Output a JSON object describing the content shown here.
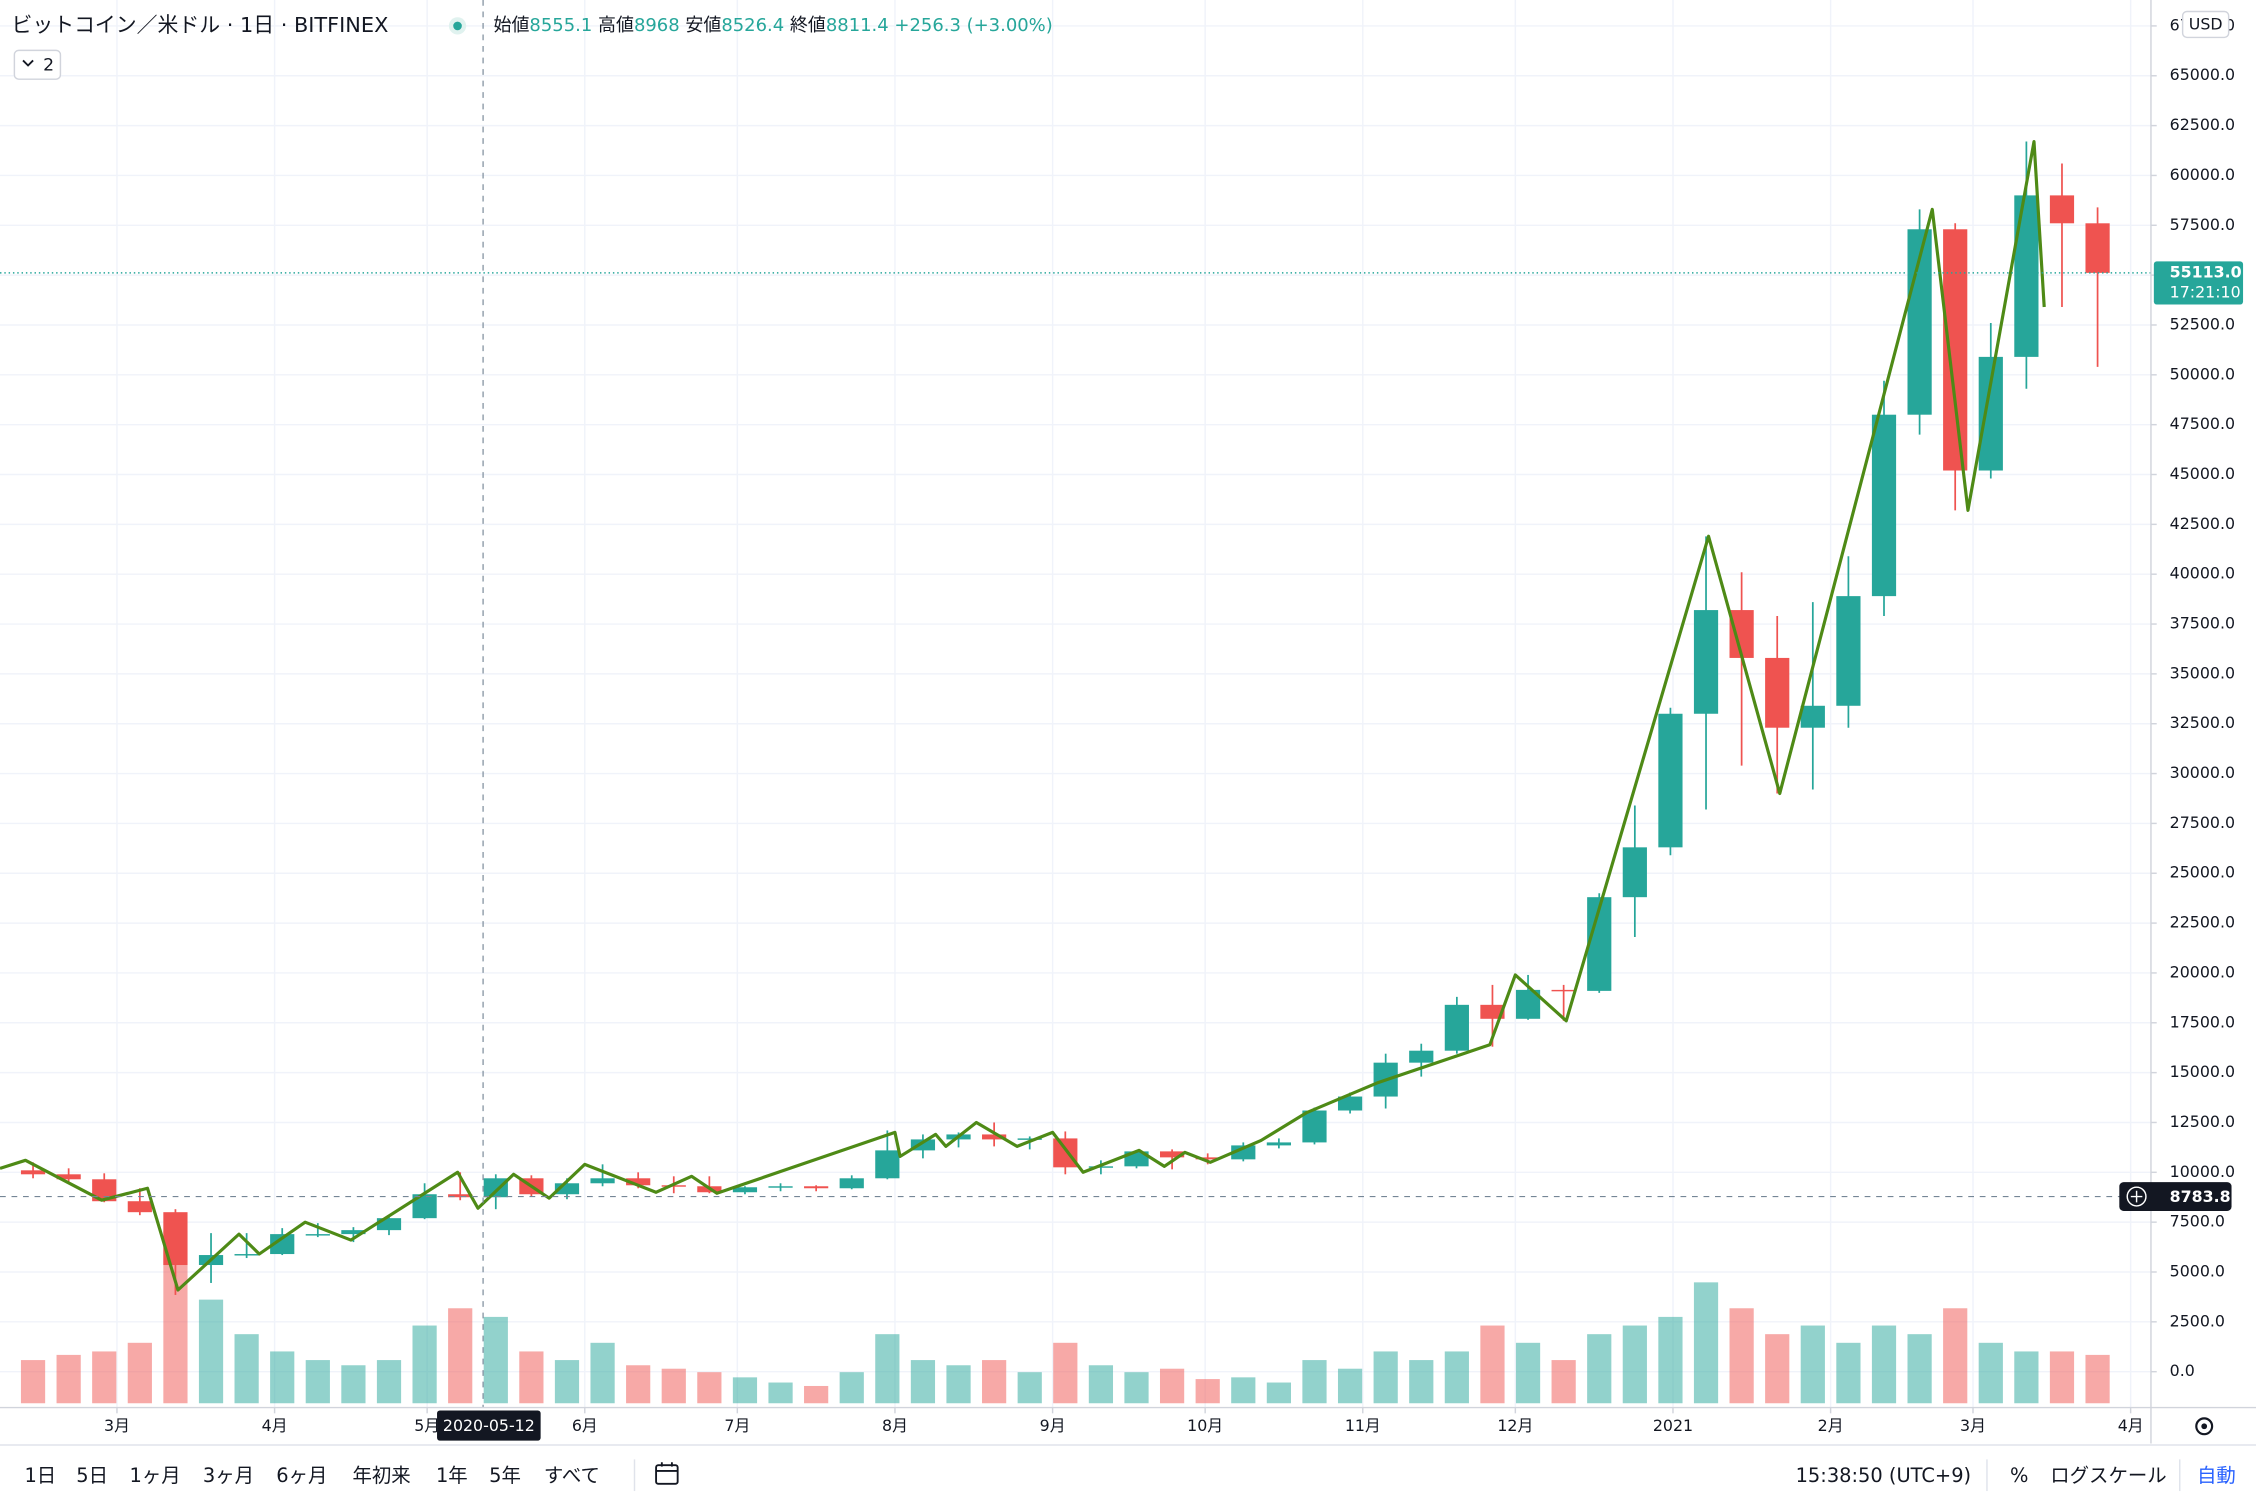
{
  "chart_data": {
    "type": "candlestick",
    "title": "ビットコイン／米ドル · 1日 · BITFINEX",
    "ohlc_legend": [
      {
        "label": "始値",
        "value": 8555.1
      },
      {
        "label": "高値",
        "value": 8968.0
      },
      {
        "label": "安値",
        "value": 8526.4
      },
      {
        "label": "終値",
        "value": 8811.4
      }
    ],
    "change_label": "+256.3 (+3.00%)",
    "indicator_count": 2,
    "currency": "USD",
    "up_color": "#26a69a",
    "down_color": "#ef5350",
    "x": [
      "2020-02-10",
      "2020-02-17",
      "2020-02-24",
      "2020-03-02",
      "2020-03-09",
      "2020-03-16",
      "2020-03-23",
      "2020-03-30",
      "2020-04-06",
      "2020-04-13",
      "2020-04-20",
      "2020-04-27",
      "2020-05-04",
      "2020-05-11",
      "2020-05-18",
      "2020-05-25",
      "2020-06-01",
      "2020-06-08",
      "2020-06-15",
      "2020-06-22",
      "2020-06-29",
      "2020-07-06",
      "2020-07-13",
      "2020-07-20",
      "2020-07-27",
      "2020-08-03",
      "2020-08-10",
      "2020-08-17",
      "2020-08-24",
      "2020-08-31",
      "2020-09-07",
      "2020-09-14",
      "2020-09-21",
      "2020-09-28",
      "2020-10-05",
      "2020-10-12",
      "2020-10-19",
      "2020-10-26",
      "2020-11-02",
      "2020-11-09",
      "2020-11-16",
      "2020-11-23",
      "2020-11-30",
      "2020-12-07",
      "2020-12-14",
      "2020-12-21",
      "2020-12-28",
      "2021-01-04",
      "2021-01-11",
      "2021-01-18",
      "2021-01-25",
      "2021-02-01",
      "2021-02-08",
      "2021-02-15",
      "2021-02-22",
      "2021-03-01",
      "2021-03-08",
      "2021-03-15",
      "2021-03-22"
    ],
    "open": [
      10100,
      9900,
      9650,
      8550,
      8000,
      5350,
      5850,
      5900,
      6900,
      6900,
      7100,
      7700,
      8900,
      8750,
      9700,
      8900,
      9450,
      9700,
      9350,
      9300,
      9000,
      9250,
      9300,
      9200,
      9700,
      11100,
      11650,
      11900,
      11650,
      11700,
      10250,
      10300,
      11050,
      10750,
      10650,
      11350,
      11500,
      13100,
      13800,
      15500,
      16100,
      18400,
      17700,
      19150,
      19100,
      23800,
      26300,
      33000,
      38200,
      35800,
      32300,
      33400,
      38900,
      48000,
      57300,
      45200,
      50900,
      59000,
      57600
    ],
    "high": [
      10500,
      10200,
      9950,
      9200,
      8150,
      6950,
      6950,
      7200,
      7450,
      7250,
      7750,
      9450,
      10000,
      9900,
      9850,
      9700,
      10400,
      10000,
      9800,
      9800,
      9300,
      9450,
      9350,
      9850,
      12100,
      11900,
      12000,
      12500,
      11800,
      12050,
      10600,
      11100,
      11150,
      10950,
      11500,
      11700,
      13250,
      14000,
      15950,
      16450,
      18800,
      19400,
      19900,
      19400,
      24000,
      28400,
      33300,
      41900,
      40100,
      37900,
      38600,
      40900,
      49700,
      58300,
      57600,
      52600,
      61700,
      60600,
      58400
    ],
    "low": [
      9700,
      9450,
      8500,
      7850,
      3850,
      4450,
      5700,
      5850,
      6750,
      6500,
      6850,
      7650,
      8600,
      8150,
      8800,
      8650,
      9300,
      9200,
      8950,
      8950,
      8900,
      9050,
      9050,
      9150,
      9650,
      10700,
      11250,
      11300,
      11150,
      9900,
      9900,
      10200,
      10150,
      10400,
      10550,
      11200,
      11400,
      12950,
      13200,
      14800,
      15950,
      16300,
      17650,
      17600,
      19000,
      21800,
      25900,
      28200,
      30400,
      29000,
      29200,
      32300,
      37900,
      47000,
      43200,
      44800,
      49300,
      53400,
      50400
    ],
    "close": [
      9900,
      9650,
      8550,
      8000,
      5350,
      5850,
      5900,
      6900,
      6900,
      7100,
      7700,
      8900,
      8750,
      9700,
      8900,
      9450,
      9700,
      9350,
      9300,
      9000,
      9250,
      9300,
      9200,
      9700,
      11100,
      11650,
      11900,
      11650,
      11700,
      10250,
      10300,
      11050,
      10750,
      10650,
      11350,
      11500,
      13100,
      13800,
      15500,
      16100,
      18400,
      17700,
      19150,
      19100,
      23800,
      26300,
      33000,
      38200,
      35800,
      32300,
      33400,
      38900,
      48000,
      57300,
      45200,
      50900,
      59000,
      57600,
      55113
    ],
    "volume": [
      25,
      28,
      30,
      35,
      100,
      60,
      40,
      30,
      25,
      22,
      25,
      45,
      55,
      50,
      30,
      25,
      35,
      22,
      20,
      18,
      15,
      12,
      10,
      18,
      40,
      25,
      22,
      25,
      18,
      35,
      22,
      18,
      20,
      14,
      15,
      12,
      25,
      20,
      30,
      25,
      30,
      45,
      35,
      25,
      40,
      45,
      50,
      70,
      55,
      40,
      45,
      35,
      45,
      40,
      55,
      35,
      30,
      30,
      28
    ],
    "zigzag": {
      "color": "#4e8a16",
      "x": [
        "2020-02-07",
        "2020-02-12",
        "2020-02-27",
        "2020-03-07",
        "2020-03-13",
        "2020-03-25",
        "2020-03-29",
        "2020-04-07",
        "2020-04-16",
        "2020-05-07",
        "2020-05-11",
        "2020-05-18",
        "2020-05-25",
        "2020-06-01",
        "2020-06-15",
        "2020-06-22",
        "2020-06-27",
        "2020-08-01",
        "2020-08-02",
        "2020-08-09",
        "2020-08-11",
        "2020-08-17",
        "2020-08-25",
        "2020-09-01",
        "2020-09-07",
        "2020-09-18",
        "2020-09-23",
        "2020-09-27",
        "2020-10-02",
        "2020-10-12",
        "2020-10-21",
        "2020-11-04",
        "2020-11-26",
        "2020-12-01",
        "2020-12-11",
        "2021-01-08",
        "2021-01-22",
        "2021-02-21",
        "2021-02-28",
        "2021-03-13",
        "2021-03-15"
      ],
      "values": [
        10200,
        10600,
        8600,
        9200,
        4100,
        6900,
        5900,
        7500,
        6600,
        10000,
        8200,
        9900,
        8700,
        10400,
        9000,
        9800,
        8950,
        12000,
        10800,
        11900,
        11300,
        12500,
        11300,
        12000,
        10000,
        11100,
        10300,
        11000,
        10500,
        11600,
        13000,
        14500,
        16400,
        19900,
        17600,
        41900,
        29000,
        58300,
        43200,
        61700,
        53400
      ]
    },
    "xlim": [
      "2020-02-07",
      "2021-04-05"
    ],
    "xticks": [
      {
        "value": "2020-03-01",
        "label": "3月"
      },
      {
        "value": "2020-04-01",
        "label": "4月"
      },
      {
        "value": "2020-05-01",
        "label": "5月"
      },
      {
        "value": "2020-06-01",
        "label": "6月"
      },
      {
        "value": "2020-07-01",
        "label": "7月"
      },
      {
        "value": "2020-08-01",
        "label": "8月"
      },
      {
        "value": "2020-09-01",
        "label": "9月"
      },
      {
        "value": "2020-10-01",
        "label": "10月"
      },
      {
        "value": "2020-11-01",
        "label": "11月"
      },
      {
        "value": "2020-12-01",
        "label": "12月"
      },
      {
        "value": "2021-01-01",
        "label": "2021"
      },
      {
        "value": "2021-02-01",
        "label": "2月"
      },
      {
        "value": "2021-03-01",
        "label": "3月"
      },
      {
        "value": "2021-04-01",
        "label": "4月"
      }
    ],
    "ylim": [
      -1800,
      68800
    ],
    "yticks": [
      {
        "value": 0,
        "label": "0.0"
      },
      {
        "value": 2500,
        "label": "2500.0"
      },
      {
        "value": 5000,
        "label": "5000.0"
      },
      {
        "value": 7500,
        "label": "7500.0"
      },
      {
        "value": 10000,
        "label": "10000.0"
      },
      {
        "value": 12500,
        "label": "12500.0"
      },
      {
        "value": 15000,
        "label": "15000.0"
      },
      {
        "value": 17500,
        "label": "17500.0"
      },
      {
        "value": 20000,
        "label": "20000.0"
      },
      {
        "value": 22500,
        "label": "22500.0"
      },
      {
        "value": 25000,
        "label": "25000.0"
      },
      {
        "value": 27500,
        "label": "27500.0"
      },
      {
        "value": 30000,
        "label": "30000.0"
      },
      {
        "value": 32500,
        "label": "32500.0"
      },
      {
        "value": 35000,
        "label": "35000.0"
      },
      {
        "value": 37500,
        "label": "37500.0"
      },
      {
        "value": 40000,
        "label": "40000.0"
      },
      {
        "value": 42500,
        "label": "42500.0"
      },
      {
        "value": 45000,
        "label": "45000.0"
      },
      {
        "value": 47500,
        "label": "47500.0"
      },
      {
        "value": 50000,
        "label": "50000.0"
      },
      {
        "value": 52500,
        "label": "52500.0"
      },
      {
        "value": 55000,
        "label": "55000.0"
      },
      {
        "value": 57500,
        "label": "57500.0"
      },
      {
        "value": 60000,
        "label": "60000.0"
      },
      {
        "value": 62500,
        "label": "62500.0"
      },
      {
        "value": 65000,
        "label": "65000.0"
      },
      {
        "value": 67500,
        "label": "67500.0"
      }
    ],
    "grid": true,
    "last_price": {
      "value": 55113,
      "label": "55113.0",
      "countdown": "17:21:10"
    },
    "crosshair": {
      "date": "2020-05-12",
      "price": {
        "value": 8783.8,
        "label": "8783.8"
      }
    }
  },
  "toolbar": {
    "ranges": [
      "1日",
      "5日",
      "1ヶ月",
      "3ヶ月",
      "6ヶ月",
      "年初来",
      "1年",
      "5年",
      "すべて"
    ],
    "clock": "15:38:50 (UTC+9)",
    "percent": "%",
    "log_scale": "ログスケール",
    "auto": "自動"
  }
}
